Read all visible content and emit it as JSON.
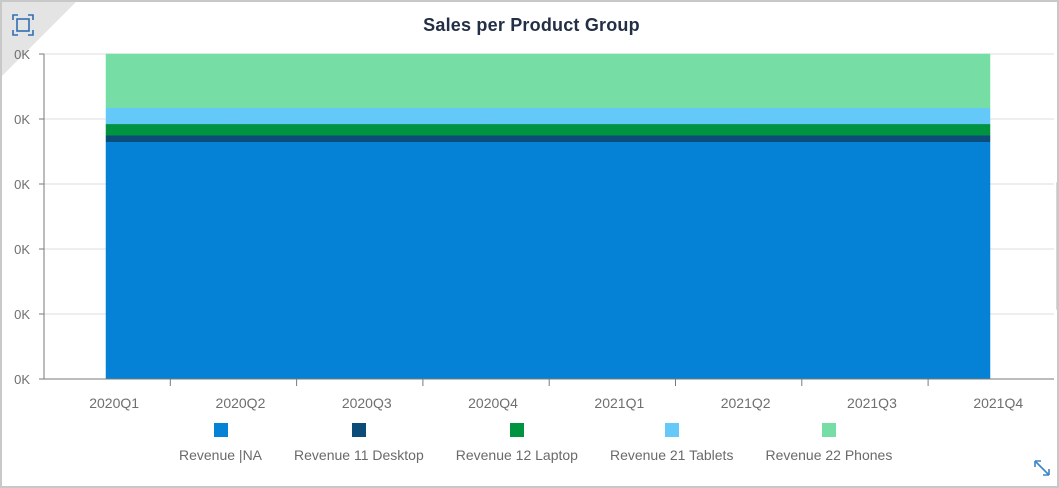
{
  "chart_data": {
    "type": "area",
    "title": "Sales per Product Group",
    "xlabel": "",
    "ylabel": "",
    "x": [
      "2020Q1",
      "2020Q2",
      "2020Q3",
      "2020Q4",
      "2021Q1",
      "2021Q2",
      "2021Q3",
      "2021Q4"
    ],
    "y_tick_labels": [
      "0K",
      "0K",
      "0K",
      "0K",
      "0K",
      "0K"
    ],
    "ylim": [
      0,
      100
    ],
    "stacked": true,
    "grid": true,
    "legend_position": "bottom",
    "series": [
      {
        "name": "Revenue |NA",
        "color": "#0581d6",
        "values": [
          73,
          73,
          73,
          73,
          73,
          73,
          73,
          73
        ]
      },
      {
        "name": "Revenue 11 Desktop",
        "color": "#0c4c78",
        "values": [
          2,
          2,
          2,
          2,
          2,
          2,
          2,
          2
        ]
      },
      {
        "name": "Revenue 12 Laptop",
        "color": "#009440",
        "values": [
          3.5,
          3.5,
          3.5,
          3.5,
          3.5,
          3.5,
          3.5,
          3.5
        ]
      },
      {
        "name": "Revenue 21 Tablets",
        "color": "#64c9f8",
        "values": [
          5,
          5,
          5,
          5,
          5,
          5,
          5,
          5
        ]
      },
      {
        "name": "Revenue 22 Phones",
        "color": "#76dda5",
        "values": [
          16.5,
          16.5,
          16.5,
          16.5,
          16.5,
          16.5,
          16.5,
          16.5
        ]
      }
    ]
  },
  "icons": {
    "fit": "fit-to-frame-icon",
    "expand": "expand-diagonal-icon"
  }
}
